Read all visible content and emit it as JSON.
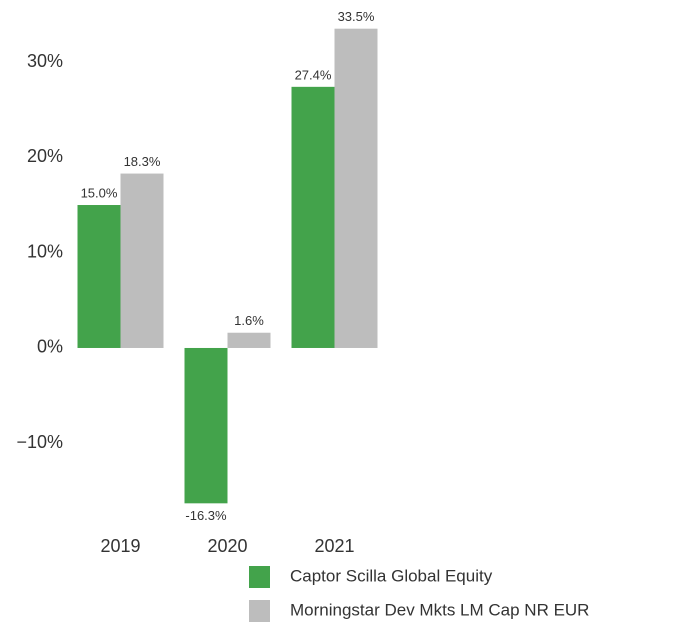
{
  "chart_data": {
    "type": "bar",
    "categories": [
      "2019",
      "2020",
      "2021"
    ],
    "series": [
      {
        "name": "Captor Scilla Global Equity",
        "color": "#43a34b",
        "values": [
          15.0,
          -16.3,
          27.4
        ],
        "value_labels": [
          "15.0%",
          "-16.3%",
          "27.4%"
        ]
      },
      {
        "name": "Morningstar Dev Mkts LM Cap NR EUR",
        "color": "#bdbdbd",
        "values": [
          18.3,
          1.6,
          33.5
        ],
        "value_labels": [
          "18.3%",
          "1.6%",
          "33.5%"
        ]
      }
    ],
    "ylim": [
      -17,
      35
    ],
    "yticks": [
      {
        "value": -10,
        "label": "−10%"
      },
      {
        "value": 0,
        "label": "0%"
      },
      {
        "value": 10,
        "label": "10%"
      },
      {
        "value": 20,
        "label": "20%"
      },
      {
        "value": 30,
        "label": "30%"
      }
    ],
    "grid": false,
    "legend": "bottom"
  }
}
